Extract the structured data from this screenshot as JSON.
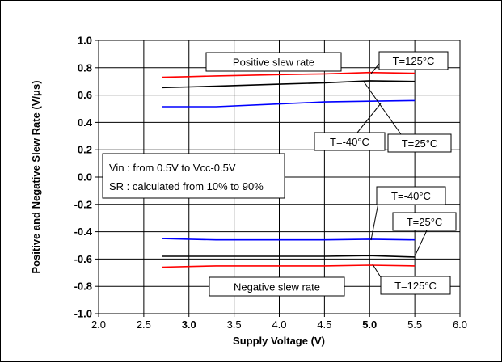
{
  "chart_data": {
    "type": "line",
    "xlabel": "Supply Voltage (V)",
    "ylabel": "Positive and Negative Slew Rate (V/μs)",
    "xlim": [
      2.0,
      6.0
    ],
    "ylim": [
      -1.0,
      1.0
    ],
    "x_ticks": [
      "2.0",
      "2.5",
      "3.0",
      "3.5",
      "4.0",
      "4.5",
      "5.0",
      "5.5",
      "6.0"
    ],
    "y_ticks": [
      "1.0",
      "0.8",
      "0.6",
      "0.4",
      "0.2",
      "0.0",
      "-0.2",
      "-0.4",
      "-0.6",
      "-0.8",
      "-1.0"
    ],
    "bold_x_ticks": [
      "3.0",
      "5.0"
    ],
    "grid": true,
    "series": [
      {
        "name": "T=125°C",
        "color": "#ff0000",
        "x": [
          2.7,
          3.0,
          3.3,
          4.0,
          4.5,
          5.0,
          5.5
        ],
        "y": [
          0.73,
          0.735,
          0.74,
          0.75,
          0.755,
          0.765,
          0.76
        ]
      },
      {
        "name": "T=25°C",
        "color": "#000000",
        "x": [
          2.7,
          3.0,
          3.3,
          4.0,
          4.5,
          5.0,
          5.5
        ],
        "y": [
          0.655,
          0.66,
          0.665,
          0.68,
          0.69,
          0.705,
          0.7
        ]
      },
      {
        "name": "T=-40°C",
        "color": "#0000ff",
        "x": [
          2.7,
          3.0,
          3.3,
          4.0,
          4.5,
          5.0,
          5.5
        ],
        "y": [
          0.515,
          0.515,
          0.515,
          0.535,
          0.55,
          0.555,
          0.56
        ]
      },
      {
        "name": "T=-40°C",
        "color": "#0000ff",
        "x": [
          2.7,
          3.0,
          3.3,
          4.0,
          4.5,
          5.0,
          5.5
        ],
        "y": [
          -0.45,
          -0.455,
          -0.46,
          -0.46,
          -0.46,
          -0.455,
          -0.46
        ]
      },
      {
        "name": "T=25°C",
        "color": "#000000",
        "x": [
          2.7,
          3.0,
          3.3,
          4.0,
          4.5,
          5.0,
          5.5
        ],
        "y": [
          -0.58,
          -0.58,
          -0.58,
          -0.58,
          -0.58,
          -0.575,
          -0.585
        ]
      },
      {
        "name": "T=125°C",
        "color": "#ff0000",
        "x": [
          2.7,
          3.0,
          3.3,
          4.0,
          4.5,
          5.0,
          5.5
        ],
        "y": [
          -0.66,
          -0.655,
          -0.65,
          -0.65,
          -0.65,
          -0.645,
          -0.65
        ]
      }
    ],
    "annotations": {
      "positive_label": "Positive slew rate",
      "negative_label": "Negative slew rate",
      "note_line1": "Vin : from 0.5V to Vcc-0.5V",
      "note_line2": "SR : calculated from 10% to 90%",
      "pos_t125": "T=125°C",
      "pos_tm40": "T=-40°C",
      "pos_t25": "T=25°C",
      "neg_tm40": "T=-40°C",
      "neg_t25": "T=25°C",
      "neg_t125": "T=125°C"
    }
  }
}
